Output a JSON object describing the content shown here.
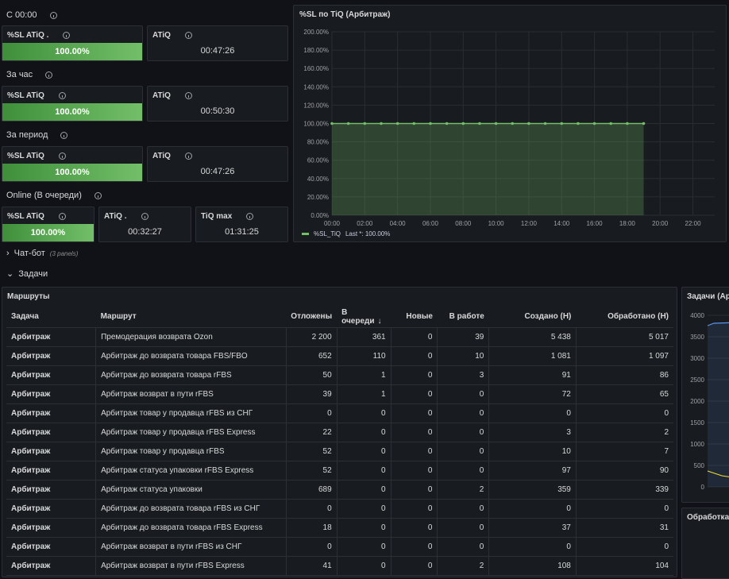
{
  "sections": {
    "since_midnight": "С 00:00",
    "per_hour": "За час",
    "per_period": "За период",
    "online": "Online (В очереди)"
  },
  "stats": {
    "r1": {
      "sl_title": "%SL ATiQ .",
      "sl_value": "100.00%",
      "atiq_title": "ATiQ",
      "atiq_value": "00:47:26"
    },
    "r2": {
      "sl_title": "%SL ATiQ",
      "sl_value": "100.00%",
      "atiq_title": "ATiQ",
      "atiq_value": "00:50:30"
    },
    "r3": {
      "sl_title": "%SL ATiQ",
      "sl_value": "100.00%",
      "atiq_title": "ATiQ",
      "atiq_value": "00:47:26"
    },
    "r4": {
      "sl_title": "%SL ATiQ",
      "sl_value": "100.00%",
      "atiq_title": "ATiQ .",
      "atiq_value": "00:32:27",
      "tiq_title": "TiQ max",
      "tiq_value": "01:31:25"
    }
  },
  "sl_panel": {
    "title": "%SL по TiQ (Арбитраж)",
    "legend": "%SL_TiQ",
    "legend_last": "Last *: 100.00%"
  },
  "chart_data": {
    "type": "line",
    "title": "%SL по TiQ (Арбитраж)",
    "y_ticks": [
      "200.00%",
      "180.00%",
      "160.00%",
      "140.00%",
      "120.00%",
      "100.00%",
      "80.00%",
      "60.00%",
      "40.00%",
      "20.00%",
      "0.00%"
    ],
    "x_ticks": [
      "00:00",
      "02:00",
      "04:00",
      "06:00",
      "08:00",
      "10:00",
      "12:00",
      "14:00",
      "16:00",
      "18:00",
      "20:00",
      "22:00"
    ],
    "ylim": [
      0,
      200
    ],
    "xlim": [
      0,
      23.33
    ],
    "series": [
      {
        "name": "%SL_TiQ",
        "x": [
          0,
          1,
          2,
          3,
          4,
          5,
          6,
          7,
          8,
          9,
          10,
          11,
          12,
          13,
          14,
          15,
          16,
          17,
          18,
          19
        ],
        "values": [
          100,
          100,
          100,
          100,
          100,
          100,
          100,
          100,
          100,
          100,
          100,
          100,
          100,
          100,
          100,
          100,
          100,
          100,
          100,
          100
        ]
      }
    ]
  },
  "rows": {
    "chatbot": "Чат-бот",
    "chatbot_sub": "(3 panels)",
    "tasks": "Задачи"
  },
  "routes_panel": {
    "title": "Маршруты",
    "columns": [
      "Задача",
      "Маршрут",
      "Отложены",
      "В очереди",
      "Новые",
      "В работе",
      "Создано (Н)",
      "Обработано (Н)"
    ],
    "sort_icon": "↓",
    "rows": [
      [
        "Арбитраж",
        "Премодерация возврата Ozon",
        "2 200",
        "361",
        "0",
        "39",
        "5 438",
        "5 017"
      ],
      [
        "Арбитраж",
        "Арбитраж до возврата товара FBS/FBO",
        "652",
        "110",
        "0",
        "10",
        "1 081",
        "1 097"
      ],
      [
        "Арбитраж",
        "Арбитраж до возврата товара rFBS",
        "50",
        "1",
        "0",
        "3",
        "91",
        "86"
      ],
      [
        "Арбитраж",
        "Арбитраж возврат в пути rFBS",
        "39",
        "1",
        "0",
        "0",
        "72",
        "65"
      ],
      [
        "Арбитраж",
        "Арбитраж товар у продавца rFBS из СНГ",
        "0",
        "0",
        "0",
        "0",
        "0",
        "0"
      ],
      [
        "Арбитраж",
        "Арбитраж товар у продавца rFBS Express",
        "22",
        "0",
        "0",
        "0",
        "3",
        "2"
      ],
      [
        "Арбитраж",
        "Арбитраж товар у продавца rFBS",
        "52",
        "0",
        "0",
        "0",
        "10",
        "7"
      ],
      [
        "Арбитраж",
        "Арбитраж статуса упаковки rFBS Express",
        "52",
        "0",
        "0",
        "0",
        "97",
        "90"
      ],
      [
        "Арбитраж",
        "Арбитраж статуса упаковки",
        "689",
        "0",
        "0",
        "2",
        "359",
        "339"
      ],
      [
        "Арбитраж",
        "Арбитраж до возврата товара rFBS из СНГ",
        "0",
        "0",
        "0",
        "0",
        "0",
        "0"
      ],
      [
        "Арбитраж",
        "Арбитраж до возврата товара rFBS Express",
        "18",
        "0",
        "0",
        "0",
        "37",
        "31"
      ],
      [
        "Арбитраж",
        "Арбитраж возврат в пути rFBS из СНГ",
        "0",
        "0",
        "0",
        "0",
        "0",
        "0"
      ],
      [
        "Арбитраж",
        "Арбитраж возврат в пути rFBS Express",
        "41",
        "0",
        "0",
        "2",
        "108",
        "104"
      ]
    ]
  },
  "tasks_panel": {
    "title": "Задачи (Ар",
    "y_ticks": [
      "4000",
      "3500",
      "3000",
      "2500",
      "2000",
      "1500",
      "1000",
      "500",
      "0"
    ]
  },
  "processing_panel": {
    "title": "Обработка"
  }
}
